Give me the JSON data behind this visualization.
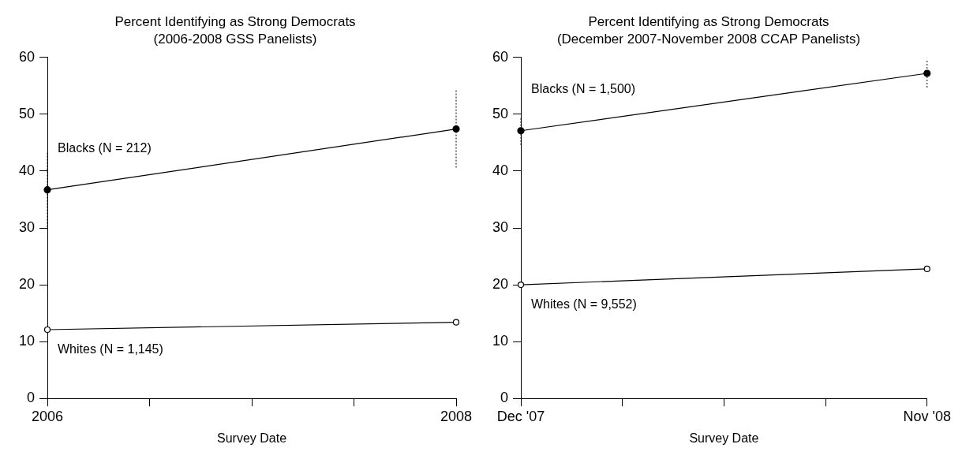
{
  "chart_data": [
    {
      "type": "line",
      "title": "Percent Identifying as Strong Democrats",
      "subtitle": "(2006-2008 GSS Panelists)",
      "xlabel": "Survey Date",
      "categories": [
        "2006",
        null,
        null,
        null,
        "2008"
      ],
      "ylim": [
        0,
        60
      ],
      "yticks": [
        0,
        10,
        20,
        30,
        40,
        50,
        60
      ],
      "grid": false,
      "legend": false,
      "marker": "circle",
      "series": [
        {
          "name": "Blacks (N = 212)",
          "color": "#000000",
          "values": [
            36.7,
            null,
            null,
            null,
            47.4
          ],
          "errors": [
            6.5,
            null,
            null,
            null,
            6.8
          ]
        },
        {
          "name": "Whites (N = 1,145)",
          "color": "#000000",
          "values": [
            12.1,
            null,
            null,
            null,
            13.4
          ]
        }
      ]
    },
    {
      "type": "line",
      "title": "Percent Identifying as Strong Democrats",
      "subtitle": "(December 2007-November 2008 CCAP Panelists)",
      "xlabel": "Survey Date",
      "categories": [
        "Dec '07",
        null,
        null,
        null,
        "Nov '08"
      ],
      "ylim": [
        0,
        60
      ],
      "yticks": [
        0,
        10,
        20,
        30,
        40,
        50,
        60
      ],
      "grid": false,
      "legend": false,
      "marker": "circle",
      "series": [
        {
          "name": "Blacks (N = 1,500)",
          "color": "#000000",
          "values": [
            47.1,
            null,
            null,
            null,
            57.2
          ],
          "errors": [
            2.5,
            null,
            null,
            null,
            2.5
          ]
        },
        {
          "name": "Whites (N = 9,552)",
          "color": "#000000",
          "values": [
            20.0,
            null,
            null,
            null,
            22.8
          ]
        }
      ]
    }
  ]
}
